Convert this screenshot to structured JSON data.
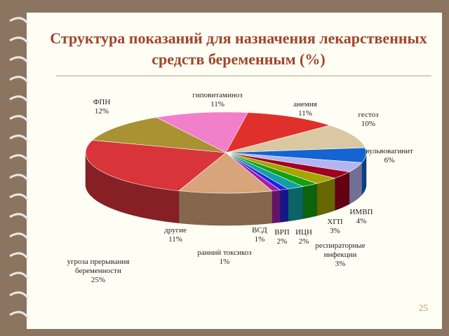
{
  "chart_data": {
    "type": "pie",
    "title": "Структура показаний для назначения лекарственных средств беременным (%)",
    "categories": [
      "гиповитаминоз",
      "анемия",
      "гестоз",
      "вульвовагинит",
      "ИМВП",
      "ХГП",
      "респираторные инфекции",
      "ИЦН",
      "ВРП",
      "ВСД",
      "ранний токсикоз",
      "другие",
      "угроза прерывания беременности",
      "ФПН"
    ],
    "values": [
      11,
      11,
      10,
      6,
      4,
      3,
      3,
      2,
      2,
      1,
      1,
      11,
      25,
      12
    ],
    "value_labels": [
      "11%",
      "11%",
      "10%",
      "6%",
      "4%",
      "3%",
      "3%",
      "2%",
      "2%",
      "1%",
      "1%",
      "11%",
      "25%",
      "12%"
    ],
    "colors": [
      "#f27fc9",
      "#e0302c",
      "#d9c8a2",
      "#1464d2",
      "#b4b4f2",
      "#a0001e",
      "#a6a600",
      "#12a012",
      "#10a0a6",
      "#2424e0",
      "#a020a8",
      "#d8a47c",
      "#d8343a",
      "#a89232"
    ]
  },
  "page_number": "25"
}
